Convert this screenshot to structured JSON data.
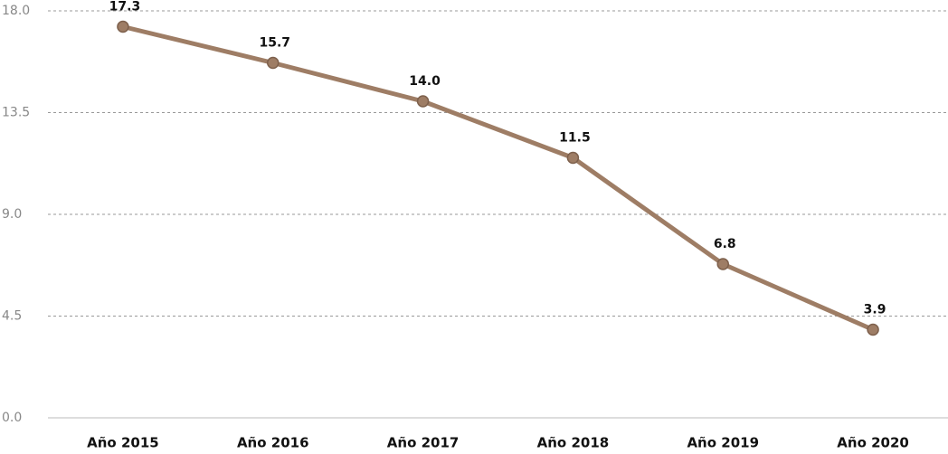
{
  "chart_data": {
    "type": "line",
    "categories": [
      "Año 2015",
      "Año 2016",
      "Año 2017",
      "Año 2018",
      "Año 2019",
      "Año 2020"
    ],
    "values": [
      17.3,
      15.7,
      14,
      11.5,
      6.8,
      3.9
    ],
    "value_labels": [
      "17.3",
      "15.7",
      "14.0",
      "11.5",
      "6.8",
      "3.9"
    ],
    "color": "#9e7d65",
    "ylim": [
      0,
      18
    ],
    "yticks": [
      {
        "value": 0,
        "label": "0.0"
      },
      4.5,
      {
        "value": 9,
        "label": "9.0"
      },
      13.5,
      {
        "value": 18,
        "label": "18.0"
      }
    ],
    "grid": true
  }
}
